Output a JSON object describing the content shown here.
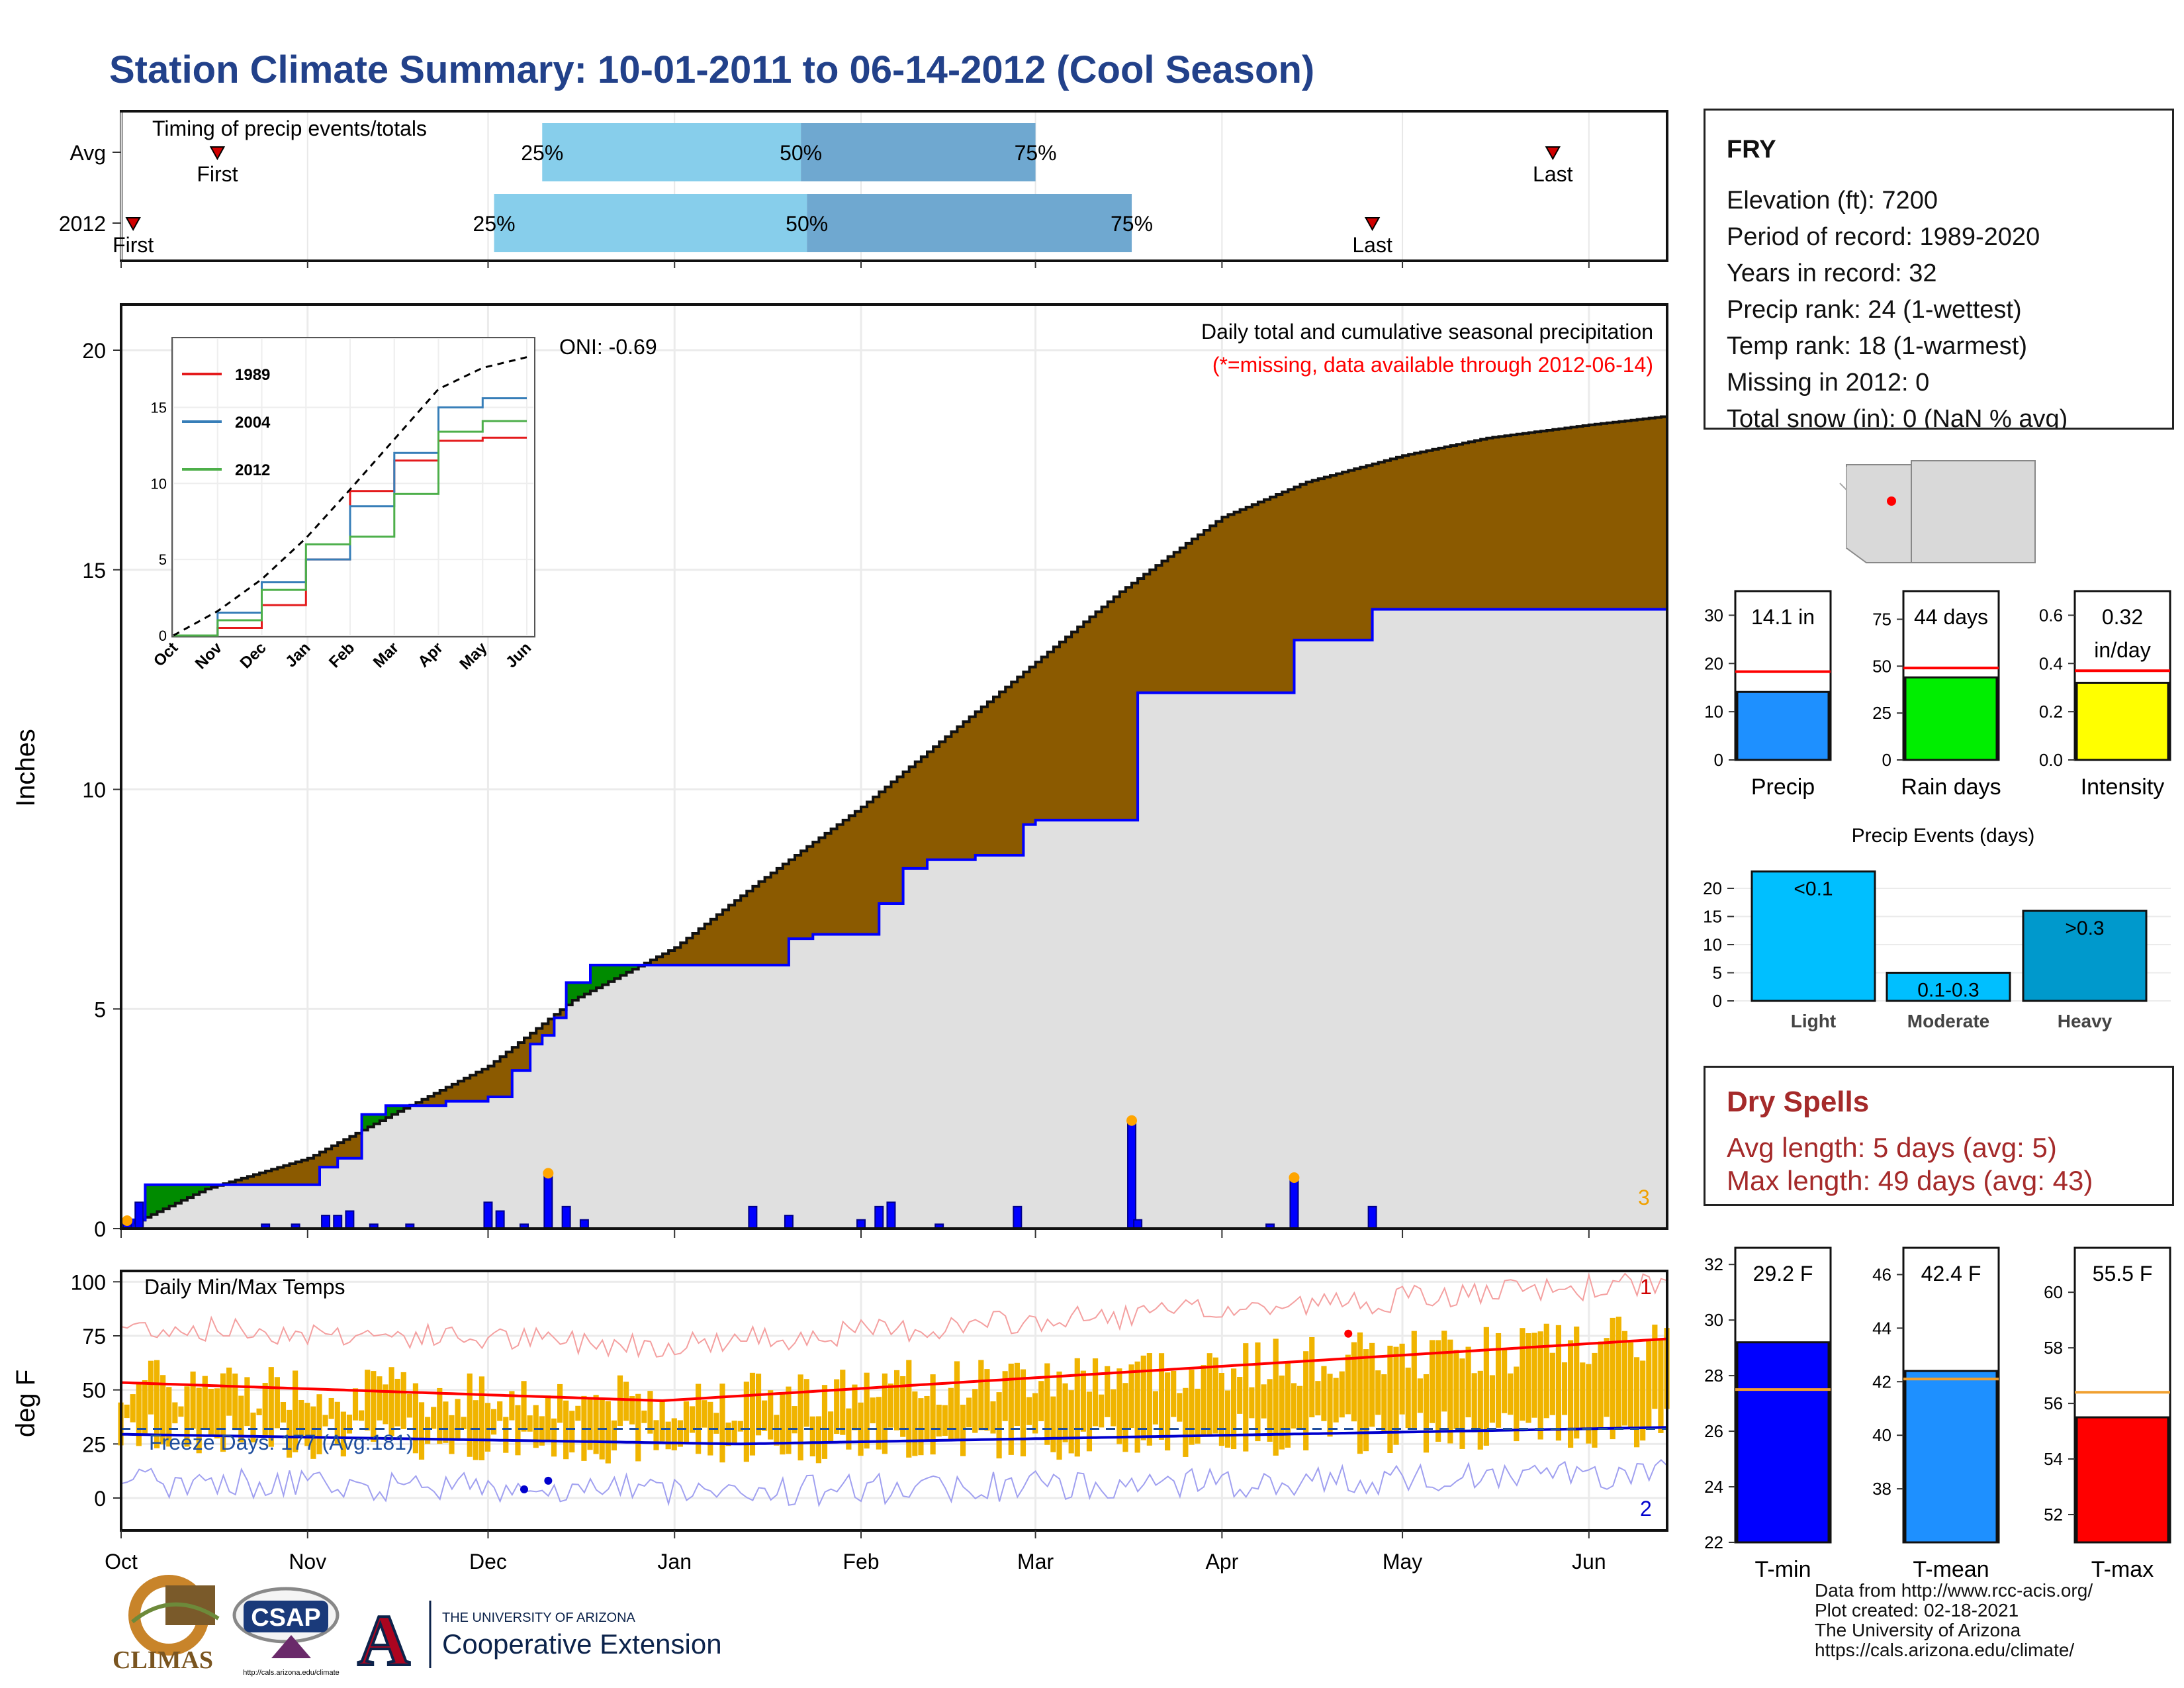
{
  "title": "Station Climate Summary: 10-01-2011 to 06-14-2012 (Cool Season)",
  "timing": {
    "label": "Timing of precip events/totals",
    "rows": [
      {
        "name": "Avg",
        "first": "2011-10-17",
        "last": "2012-05-26",
        "p25": "2011-12-10",
        "p50": "2012-01-22",
        "p75": "2012-03-01"
      },
      {
        "name": "2012",
        "first": "2011-10-03",
        "last": "2012-04-26",
        "p25": "2011-12-02",
        "p50": "2012-01-23",
        "p75": "2012-03-17"
      }
    ],
    "first_label": "First",
    "last_label": "Last",
    "p25_label": "25%",
    "p50_label": "50%",
    "p75_label": "75%"
  },
  "precip_panel": {
    "ylabel": "Inches",
    "note1": "Daily total and cumulative seasonal precipitation",
    "note2": "(*=missing, data available through 2012-06-14)",
    "oni": "ONI: -0.69",
    "count_label": "3",
    "yticks": [
      "0",
      "5",
      "10",
      "15",
      "20"
    ]
  },
  "chart_data": [
    {
      "type": "area",
      "name": "cumulative-precip",
      "ylabel": "Inches",
      "ylim": [
        0,
        20
      ],
      "x_start": "2011-10-01",
      "x_end": "2012-06-14",
      "avg_cumulative": {
        "x": [
          "2011-10-01",
          "2011-10-15",
          "2011-11-01",
          "2011-11-15",
          "2011-12-01",
          "2011-12-15",
          "2012-01-01",
          "2012-01-15",
          "2012-02-01",
          "2012-02-15",
          "2012-03-01",
          "2012-03-15",
          "2012-04-01",
          "2012-04-15",
          "2012-05-01",
          "2012-05-15",
          "2012-06-01",
          "2012-06-14"
        ],
        "y": [
          0.0,
          0.9,
          1.6,
          2.6,
          3.7,
          5.2,
          6.4,
          7.9,
          9.6,
          11.2,
          12.9,
          14.5,
          16.2,
          17.0,
          17.6,
          18.0,
          18.3,
          18.5
        ]
      },
      "season_2012_cumulative": {
        "x": [
          "2011-10-01",
          "2011-10-03",
          "2011-10-05",
          "2011-10-31",
          "2011-11-03",
          "2011-11-06",
          "2011-11-10",
          "2011-11-14",
          "2011-11-24",
          "2011-12-01",
          "2011-12-05",
          "2011-12-08",
          "2011-12-10",
          "2011-12-12",
          "2011-12-14",
          "2011-12-18",
          "2012-01-01",
          "2012-01-14",
          "2012-01-20",
          "2012-01-24",
          "2012-02-04",
          "2012-02-08",
          "2012-02-12",
          "2012-02-20",
          "2012-02-28",
          "2012-03-01",
          "2012-03-16",
          "2012-03-18",
          "2012-04-08",
          "2012-04-13",
          "2012-04-26",
          "2012-06-14"
        ],
        "y": [
          0.0,
          0.2,
          1.0,
          1.0,
          1.4,
          1.6,
          2.6,
          2.8,
          2.9,
          3.0,
          3.6,
          4.2,
          4.4,
          4.8,
          5.6,
          6.0,
          6.0,
          6.0,
          6.6,
          6.7,
          7.4,
          8.2,
          8.4,
          8.5,
          9.2,
          9.3,
          9.3,
          12.2,
          12.2,
          13.4,
          14.1,
          14.1
        ]
      },
      "daily_precip": {
        "x": [
          "2011-10-02",
          "2011-10-04",
          "2011-10-25",
          "2011-10-30",
          "2011-11-04",
          "2011-11-06",
          "2011-11-08",
          "2011-11-12",
          "2011-11-18",
          "2011-12-01",
          "2011-12-03",
          "2011-12-07",
          "2011-12-11",
          "2011-12-14",
          "2011-12-17",
          "2012-01-14",
          "2012-01-20",
          "2012-02-01",
          "2012-02-04",
          "2012-02-06",
          "2012-02-14",
          "2012-02-27",
          "2012-03-17",
          "2012-03-18",
          "2012-04-09",
          "2012-04-13",
          "2012-04-26"
        ],
        "y": [
          0.2,
          0.6,
          0.1,
          0.1,
          0.3,
          0.3,
          0.4,
          0.1,
          0.1,
          0.6,
          0.4,
          0.1,
          1.2,
          0.5,
          0.2,
          0.5,
          0.3,
          0.2,
          0.5,
          0.6,
          0.1,
          0.5,
          2.4,
          0.2,
          0.1,
          1.1,
          0.5
        ]
      },
      "yticks": [
        0,
        5,
        10,
        15,
        20
      ]
    },
    {
      "type": "line",
      "name": "inset-cumulative",
      "ylim": [
        0,
        20
      ],
      "xticks": [
        "Oct",
        "Nov",
        "Dec",
        "Jan",
        "Feb",
        "Mar",
        "Apr",
        "May",
        "Jun"
      ],
      "yticks": [
        "0",
        "5",
        "10",
        "15"
      ],
      "series": [
        {
          "name": "1989",
          "color": "#e41a1c",
          "y_monthly": [
            0,
            0.5,
            2.0,
            5.0,
            9.5,
            11.5,
            12.8,
            13.0,
            13.0
          ]
        },
        {
          "name": "2004",
          "color": "#377eb8",
          "y_monthly": [
            0,
            1.5,
            3.5,
            5.0,
            8.5,
            12.0,
            15.0,
            15.6,
            15.6
          ]
        },
        {
          "name": "2012",
          "color": "#4daf4a",
          "y_monthly": [
            0,
            1.0,
            3.0,
            6.0,
            6.5,
            9.3,
            13.4,
            14.1,
            14.1
          ]
        },
        {
          "name": "avg",
          "color": "#000000",
          "y_monthly": [
            0,
            1.6,
            3.7,
            6.4,
            9.6,
            12.9,
            16.2,
            17.6,
            18.3
          ]
        }
      ]
    },
    {
      "type": "bar",
      "name": "temps",
      "ylabel": "deg F",
      "title": "Daily Min/Max Temps",
      "ylim": [
        -15,
        105
      ],
      "yticks": [
        "0",
        "25",
        "50",
        "75",
        "100"
      ],
      "xticks": [
        "Oct",
        "Nov",
        "Dec",
        "Jan",
        "Feb",
        "Mar",
        "Apr",
        "May",
        "Jun"
      ],
      "freeze_label": "Freeze Days: 177 (Avg:181)",
      "freeze_line": 32,
      "max_count_label": "1",
      "min_count_label": "2"
    },
    {
      "type": "bar",
      "name": "precip-summaries",
      "bars": [
        {
          "label": "Precip",
          "value": 14.1,
          "avg": 18.3,
          "text": "14.1 in",
          "ylim": [
            0,
            35
          ],
          "yticks": [
            "0",
            "10",
            "20",
            "30"
          ],
          "color": "#1e90ff"
        },
        {
          "label": "Rain days",
          "value": 44,
          "avg": 49,
          "text": "44 days",
          "ylim": [
            0,
            90
          ],
          "yticks": [
            "0",
            "25",
            "50",
            "75"
          ],
          "color": "#00ee00"
        },
        {
          "label": "Intensity",
          "value": 0.32,
          "avg": 0.37,
          "text": "0.32",
          "text2": "in/day",
          "ylim": [
            0,
            0.7
          ],
          "yticks": [
            "0.0",
            "0.2",
            "0.4",
            "0.6"
          ],
          "color": "#ffff00"
        }
      ]
    },
    {
      "type": "bar",
      "name": "precip-events",
      "title": "Precip Events (days)",
      "categories": [
        "Light",
        "Moderate",
        "Heavy"
      ],
      "values": [
        23,
        5,
        16
      ],
      "value_labels": [
        "<0.1",
        "0.1-0.3",
        ">0.3"
      ],
      "ylim": [
        0,
        24
      ],
      "yticks": [
        "0",
        "5",
        "10",
        "15",
        "20"
      ],
      "colors": [
        "#00bfff",
        "#00bfff",
        "#0099cc"
      ]
    },
    {
      "type": "bar",
      "name": "temp-summaries",
      "bars": [
        {
          "label": "T-min",
          "value": 29.2,
          "avg": 27.5,
          "text": "29.2 F",
          "ylim": [
            22,
            32.6
          ],
          "yticks": [
            "22",
            "24",
            "26",
            "28",
            "30",
            "32"
          ],
          "color": "#0000ff"
        },
        {
          "label": "T-mean",
          "value": 42.4,
          "avg": 42.1,
          "text": "42.4 F",
          "ylim": [
            36,
            47
          ],
          "yticks": [
            "38",
            "40",
            "42",
            "44",
            "46"
          ],
          "color": "#1e90ff"
        },
        {
          "label": "T-max",
          "value": 55.5,
          "avg": 56.4,
          "text": "55.5 F",
          "ylim": [
            51,
            61.6
          ],
          "yticks": [
            "52",
            "54",
            "56",
            "58",
            "60"
          ],
          "color": "#ff0000"
        }
      ]
    }
  ],
  "station": {
    "name": "FRY",
    "lines": [
      "Elevation (ft): 7200",
      "Period of record: 1989-2020",
      "Years in record: 32",
      "Precip rank: 24 (1-wettest)",
      "Temp rank: 18 (1-warmest)",
      "Missing in 2012: 0",
      "Total snow (in): 0 (NaN % avg)"
    ]
  },
  "dry_spells": {
    "title": "Dry Spells",
    "avg_line": "Avg length: 5 days (avg: 5)",
    "max_line": "Max length: 49 days (avg: 43)"
  },
  "footer": {
    "lines": [
      "Data from http://www.rcc-acis.org/",
      "Plot created: 02-18-2021",
      "The University of Arizona",
      "https://cals.arizona.edu/climate/"
    ]
  },
  "logos": {
    "climas": "CLIMAS",
    "csap": "CSAP",
    "csap_url": "http://cals.arizona.edu/climate",
    "ua_small": "THE UNIVERSITY OF ARIZONA",
    "ua_large": "Cooperative Extension",
    "ua_letter": "A"
  },
  "colors": {
    "title": "#22418a",
    "cum_current": "#0000ff",
    "above_avg": "#8b5a00",
    "below_avg": "#008b00",
    "fill_area": "#e0e0e0",
    "temp_bar": "#f0b400",
    "tmax_line": "#ff0000",
    "tmin_line": "#0000cd",
    "quartile_light": "#87ceeb",
    "quartile_dark": "#6fa8d0",
    "dry": "#a52a2a"
  }
}
